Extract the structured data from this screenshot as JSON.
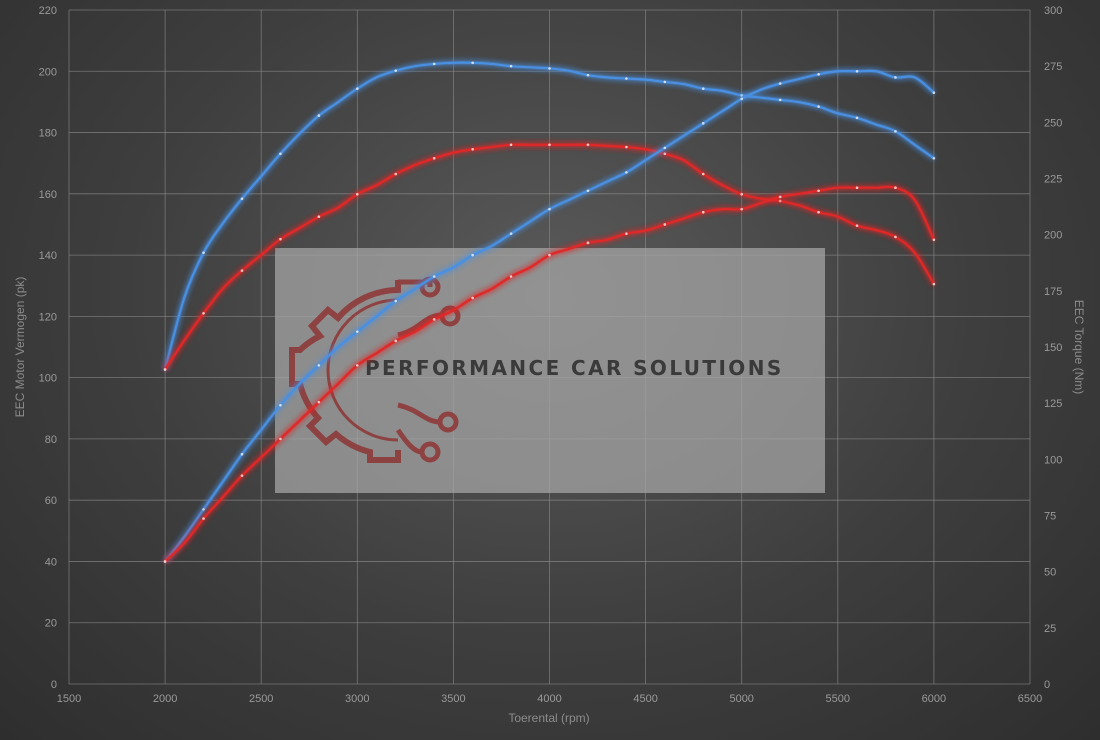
{
  "chart_data": {
    "type": "line",
    "xlabel": "Toerental (rpm)",
    "ylabel": "EEC Motor Vermogen (pk)",
    "y2label": "EEC Torque (Nm)",
    "xlim": [
      1500,
      6500
    ],
    "ylim": [
      0,
      220
    ],
    "y2lim": [
      0,
      300
    ],
    "x_ticks": [
      1500,
      2000,
      2500,
      3000,
      3500,
      4000,
      4500,
      5000,
      5500,
      6000,
      6500
    ],
    "y_ticks": [
      0,
      20,
      40,
      60,
      80,
      100,
      120,
      140,
      160,
      180,
      200,
      220
    ],
    "y2_ticks": [
      0,
      25,
      50,
      75,
      100,
      125,
      150,
      175,
      200,
      225,
      250,
      275,
      300
    ],
    "grid": true,
    "series": [
      {
        "color": "#4a90e2",
        "axis": "right",
        "points": [
          [
            2000,
            140
          ],
          [
            2100,
            172
          ],
          [
            2200,
            192
          ],
          [
            2300,
            205
          ],
          [
            2400,
            216
          ],
          [
            2500,
            226
          ],
          [
            2600,
            236
          ],
          [
            2700,
            245
          ],
          [
            2800,
            253
          ],
          [
            2900,
            259
          ],
          [
            3000,
            265
          ],
          [
            3100,
            270
          ],
          [
            3200,
            273
          ],
          [
            3300,
            275
          ],
          [
            3400,
            276
          ],
          [
            3500,
            276.5
          ],
          [
            3600,
            276.5
          ],
          [
            3700,
            276
          ],
          [
            3800,
            275
          ],
          [
            3900,
            274.5
          ],
          [
            4000,
            274
          ],
          [
            4100,
            273
          ],
          [
            4200,
            271
          ],
          [
            4300,
            270
          ],
          [
            4400,
            269.5
          ],
          [
            4500,
            269
          ],
          [
            4600,
            268
          ],
          [
            4700,
            267
          ],
          [
            4800,
            265
          ],
          [
            4900,
            264
          ],
          [
            5000,
            262
          ],
          [
            5100,
            261
          ],
          [
            5200,
            260
          ],
          [
            5300,
            259
          ],
          [
            5400,
            257
          ],
          [
            5500,
            254
          ],
          [
            5600,
            252
          ],
          [
            5700,
            249
          ],
          [
            5800,
            246
          ],
          [
            5900,
            240
          ],
          [
            6000,
            234
          ]
        ]
      },
      {
        "color": "#e02828",
        "axis": "right",
        "points": [
          [
            2000,
            140
          ],
          [
            2100,
            153
          ],
          [
            2200,
            165
          ],
          [
            2300,
            176
          ],
          [
            2400,
            184
          ],
          [
            2500,
            191
          ],
          [
            2600,
            198
          ],
          [
            2700,
            203
          ],
          [
            2800,
            208
          ],
          [
            2900,
            212
          ],
          [
            3000,
            218
          ],
          [
            3100,
            222
          ],
          [
            3200,
            227
          ],
          [
            3300,
            231
          ],
          [
            3400,
            234
          ],
          [
            3500,
            236.5
          ],
          [
            3600,
            238
          ],
          [
            3700,
            239
          ],
          [
            3800,
            240
          ],
          [
            3900,
            240
          ],
          [
            4000,
            240
          ],
          [
            4100,
            240
          ],
          [
            4200,
            240
          ],
          [
            4300,
            239.5
          ],
          [
            4400,
            239
          ],
          [
            4500,
            238
          ],
          [
            4600,
            236
          ],
          [
            4700,
            233
          ],
          [
            4800,
            227
          ],
          [
            4900,
            222
          ],
          [
            5000,
            218
          ],
          [
            5100,
            216
          ],
          [
            5200,
            215
          ],
          [
            5300,
            213
          ],
          [
            5400,
            210
          ],
          [
            5500,
            208
          ],
          [
            5600,
            204
          ],
          [
            5700,
            202
          ],
          [
            5800,
            199
          ],
          [
            5900,
            192
          ],
          [
            6000,
            178
          ]
        ]
      },
      {
        "color": "#4a90e2",
        "axis": "left",
        "points": [
          [
            2000,
            40
          ],
          [
            2100,
            48
          ],
          [
            2200,
            57
          ],
          [
            2300,
            66
          ],
          [
            2400,
            75
          ],
          [
            2500,
            83
          ],
          [
            2600,
            91
          ],
          [
            2700,
            98
          ],
          [
            2800,
            104
          ],
          [
            2900,
            110
          ],
          [
            3000,
            115
          ],
          [
            3100,
            120
          ],
          [
            3200,
            125
          ],
          [
            3300,
            129
          ],
          [
            3400,
            133
          ],
          [
            3500,
            136
          ],
          [
            3600,
            140
          ],
          [
            3700,
            143
          ],
          [
            3800,
            147
          ],
          [
            3900,
            151
          ],
          [
            4000,
            155
          ],
          [
            4100,
            158
          ],
          [
            4200,
            161
          ],
          [
            4300,
            164
          ],
          [
            4400,
            167
          ],
          [
            4500,
            171
          ],
          [
            4600,
            175
          ],
          [
            4700,
            179
          ],
          [
            4800,
            183
          ],
          [
            4900,
            187
          ],
          [
            5000,
            191
          ],
          [
            5100,
            194
          ],
          [
            5200,
            196
          ],
          [
            5300,
            197.5
          ],
          [
            5400,
            199
          ],
          [
            5500,
            200
          ],
          [
            5600,
            200
          ],
          [
            5700,
            200
          ],
          [
            5800,
            198
          ],
          [
            5900,
            198
          ],
          [
            6000,
            193
          ]
        ]
      },
      {
        "color": "#e02828",
        "axis": "left",
        "points": [
          [
            2000,
            40
          ],
          [
            2100,
            46
          ],
          [
            2200,
            54
          ],
          [
            2300,
            61
          ],
          [
            2400,
            68
          ],
          [
            2500,
            74
          ],
          [
            2600,
            80
          ],
          [
            2700,
            86
          ],
          [
            2800,
            92
          ],
          [
            2900,
            98
          ],
          [
            3000,
            104
          ],
          [
            3100,
            108
          ],
          [
            3200,
            112
          ],
          [
            3300,
            115
          ],
          [
            3400,
            119
          ],
          [
            3500,
            122
          ],
          [
            3600,
            126
          ],
          [
            3700,
            129
          ],
          [
            3800,
            133
          ],
          [
            3900,
            136
          ],
          [
            4000,
            140
          ],
          [
            4100,
            142
          ],
          [
            4200,
            144
          ],
          [
            4300,
            145
          ],
          [
            4400,
            147
          ],
          [
            4500,
            148
          ],
          [
            4600,
            150
          ],
          [
            4700,
            152
          ],
          [
            4800,
            154
          ],
          [
            4900,
            155
          ],
          [
            5000,
            155
          ],
          [
            5100,
            157
          ],
          [
            5200,
            159
          ],
          [
            5300,
            160
          ],
          [
            5400,
            161
          ],
          [
            5500,
            162
          ],
          [
            5600,
            162
          ],
          [
            5700,
            162
          ],
          [
            5800,
            162
          ],
          [
            5900,
            158
          ],
          [
            6000,
            145
          ]
        ]
      }
    ]
  },
  "watermark": {
    "text": "PERFORMANCE CAR SOLUTIONS",
    "logo_icon": "gear-circuit-logo-icon"
  }
}
